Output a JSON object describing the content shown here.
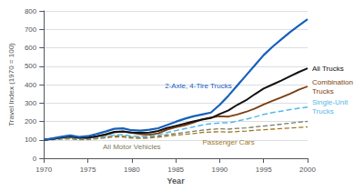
{
  "chart_data": {
    "type": "line",
    "xlabel": "Year",
    "ylabel": "Travel Index (1970 = 100)",
    "x": [
      1970,
      1971,
      1972,
      1973,
      1974,
      1975,
      1976,
      1977,
      1978,
      1979,
      1980,
      1981,
      1982,
      1983,
      1984,
      1985,
      1986,
      1987,
      1988,
      1989,
      1990,
      1991,
      1992,
      1993,
      1994,
      1995,
      1996,
      1997,
      1998,
      1999,
      2000
    ],
    "xlim": [
      1970,
      2000
    ],
    "xticks": [
      1970,
      1975,
      1980,
      1985,
      1990,
      1995,
      2000
    ],
    "ylim": [
      0,
      800
    ],
    "yticks": [
      0,
      100,
      200,
      300,
      400,
      500,
      600,
      700,
      800
    ],
    "grid": true,
    "series": [
      {
        "name": "All Motor Vehicles",
        "color": "#7a7a60",
        "line_style": "dashed",
        "values": [
          100,
          102,
          106,
          108,
          103,
          104,
          109,
          115,
          121,
          120,
          114,
          113,
          115,
          120,
          128,
          134,
          140,
          146,
          152,
          157,
          160,
          158,
          162,
          165,
          170,
          175,
          180,
          185,
          190,
          196,
          200
        ]
      },
      {
        "name": "Passenger Cars",
        "color": "#a07820",
        "line_style": "dashed",
        "values": [
          100,
          101,
          104,
          106,
          101,
          102,
          106,
          111,
          116,
          115,
          109,
          108,
          110,
          114,
          120,
          125,
          130,
          134,
          140,
          143,
          144,
          142,
          145,
          148,
          152,
          155,
          158,
          161,
          164,
          167,
          170
        ]
      },
      {
        "name": "Single-Unit\nTrucks",
        "color": "#55b8e8",
        "line_style": "dashed",
        "values": [
          100,
          103,
          108,
          112,
          107,
          106,
          112,
          118,
          126,
          128,
          120,
          118,
          120,
          126,
          140,
          150,
          160,
          170,
          180,
          188,
          192,
          192,
          202,
          212,
          224,
          238,
          248,
          256,
          264,
          272,
          278
        ]
      },
      {
        "name": "Combination\nTrucks",
        "color": "#7b3f10",
        "line_style": "solid",
        "values": [
          100,
          105,
          112,
          118,
          112,
          110,
          118,
          126,
          140,
          145,
          138,
          130,
          128,
          135,
          155,
          168,
          178,
          193,
          212,
          222,
          228,
          226,
          238,
          252,
          270,
          292,
          312,
          330,
          350,
          372,
          390
        ]
      },
      {
        "name": "All Trucks",
        "color": "#111111",
        "line_style": "solid",
        "values": [
          100,
          106,
          113,
          118,
          112,
          112,
          120,
          130,
          143,
          146,
          140,
          138,
          140,
          148,
          164,
          176,
          188,
          200,
          210,
          218,
          240,
          260,
          290,
          315,
          348,
          378,
          400,
          422,
          445,
          468,
          488
        ]
      },
      {
        "name": "2-Axle, 4-Tire Trucks",
        "color": "#1560bd",
        "line_style": "solid",
        "values": [
          100,
          108,
          117,
          124,
          116,
          120,
          132,
          145,
          160,
          162,
          152,
          150,
          155,
          163,
          180,
          198,
          214,
          228,
          238,
          248,
          290,
          340,
          395,
          450,
          505,
          560,
          605,
          645,
          685,
          720,
          755
        ]
      }
    ]
  }
}
